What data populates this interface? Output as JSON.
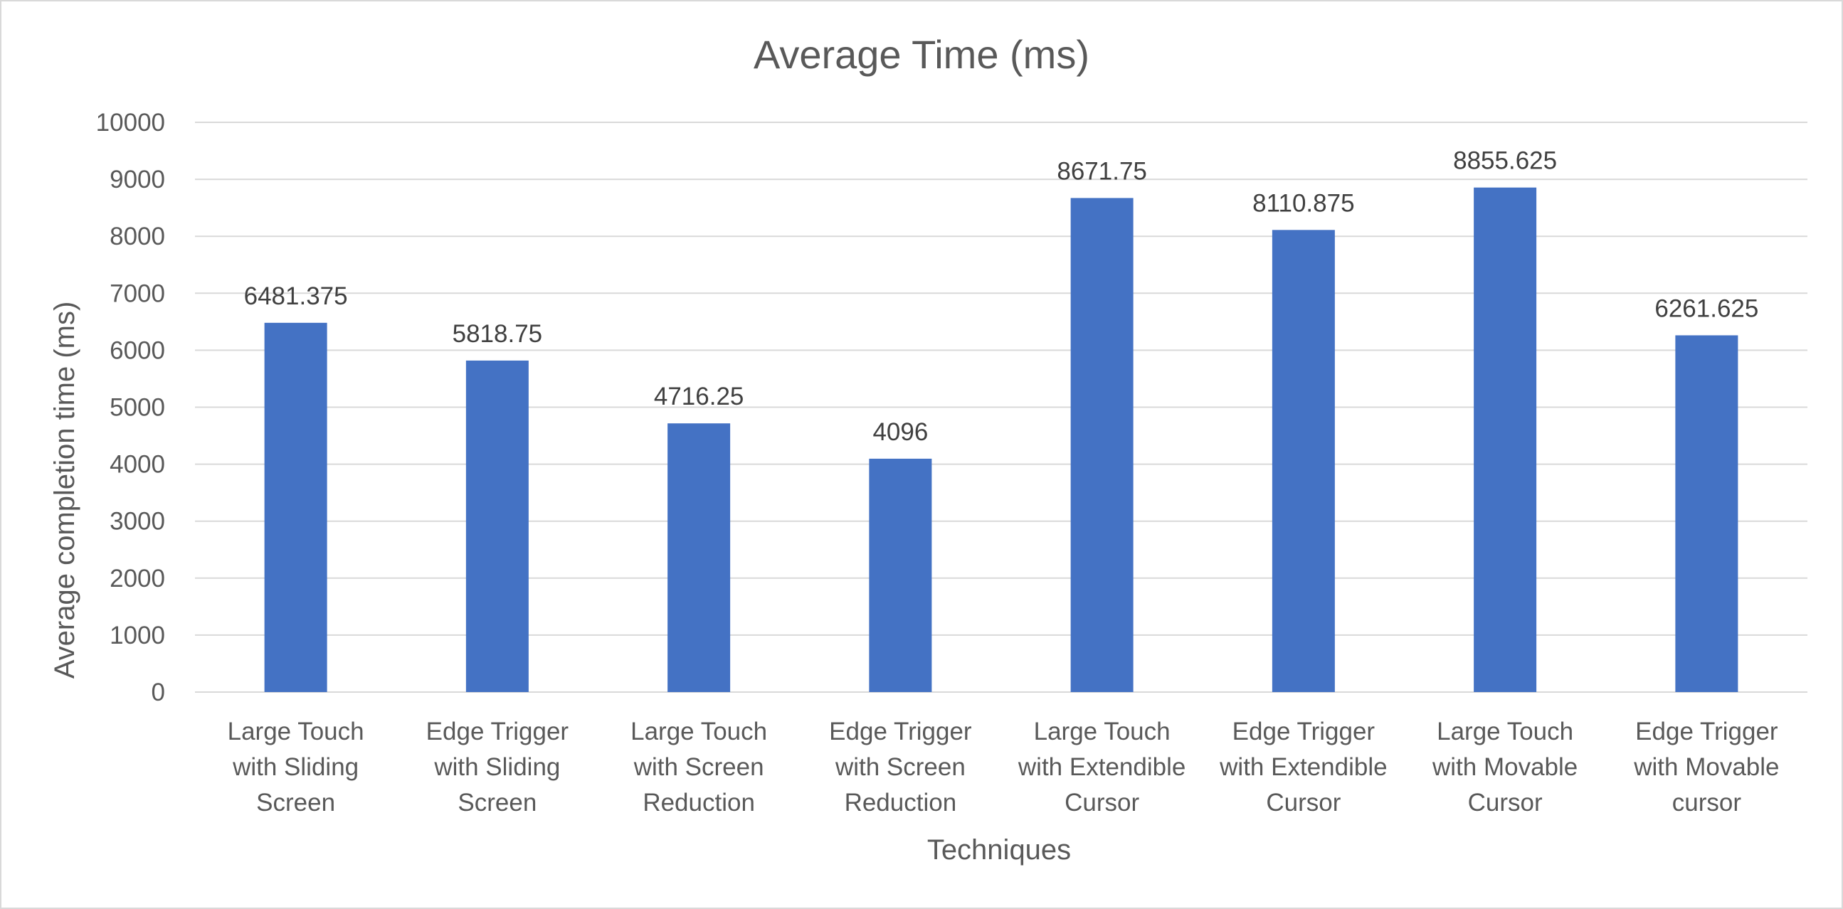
{
  "chart_data": {
    "type": "bar",
    "title": "Average Time (ms)",
    "xlabel": "Techniques",
    "ylabel": "Average completion time (ms)",
    "ylim": [
      0,
      10000
    ],
    "yticks": [
      0,
      1000,
      2000,
      3000,
      4000,
      5000,
      6000,
      7000,
      8000,
      9000,
      10000
    ],
    "grid": true,
    "legend": "none",
    "bar_color": "#4472C4",
    "categories": [
      [
        "Large Touch",
        "with Sliding",
        "Screen"
      ],
      [
        "Edge Trigger",
        "with Sliding",
        "Screen"
      ],
      [
        "Large Touch",
        "with Screen",
        "Reduction"
      ],
      [
        "Edge Trigger",
        "with Screen",
        "Reduction"
      ],
      [
        "Large Touch",
        "with Extendible",
        "Cursor"
      ],
      [
        "Edge Trigger",
        "with Extendible",
        "Cursor"
      ],
      [
        "Large Touch",
        "with Movable",
        "Cursor"
      ],
      [
        "Edge Trigger",
        "with Movable",
        "cursor"
      ]
    ],
    "values": [
      6481.375,
      5818.75,
      4716.25,
      4096,
      8671.75,
      8110.875,
      8855.625,
      6261.625
    ],
    "data_labels": [
      "6481.375",
      "5818.75",
      "4716.25",
      "4096",
      "8671.75",
      "8110.875",
      "8855.625",
      "6261.625"
    ]
  }
}
